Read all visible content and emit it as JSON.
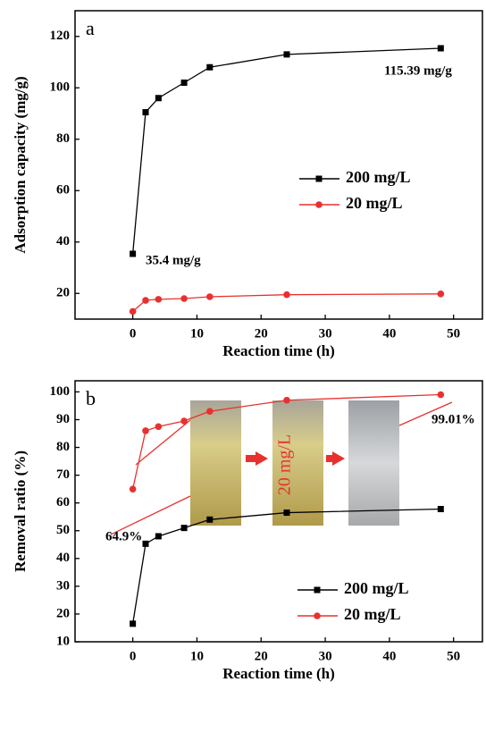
{
  "chart_data": [
    {
      "type": "line",
      "panel_label": "a",
      "xlabel": "Reaction time (h)",
      "ylabel": "Adsorption capacity (mg/g)",
      "x": [
        0,
        2,
        4,
        8,
        12,
        24,
        48
      ],
      "series": [
        {
          "name": "200 mg/L",
          "color": "#000000",
          "marker": "square",
          "values": [
            35.4,
            90.5,
            96,
            102,
            108,
            113,
            115.39
          ]
        },
        {
          "name": "20 mg/L",
          "color": "#e8312f",
          "marker": "circle",
          "values": [
            13,
            17.3,
            17.7,
            18,
            18.7,
            19.5,
            19.8
          ]
        }
      ],
      "xlim": [
        -9,
        54.5
      ],
      "ylim": [
        10,
        130
      ],
      "xticks": [
        0,
        10,
        20,
        30,
        40,
        50
      ],
      "yticks": [
        20,
        40,
        60,
        80,
        100,
        120
      ],
      "legend": "center right",
      "annotations": [
        "35.4 mg/g",
        "115.39 mg/g"
      ]
    },
    {
      "type": "line",
      "panel_label": "b",
      "xlabel": "Reaction time (h)",
      "ylabel": "Removal ratio (%)",
      "x": [
        0,
        2,
        4,
        8,
        12,
        24,
        48
      ],
      "series": [
        {
          "name": "200 mg/L",
          "color": "#000000",
          "marker": "square",
          "values": [
            16.5,
            45.3,
            48,
            51,
            54,
            56.5,
            57.8
          ]
        },
        {
          "name": "20 mg/L",
          "color": "#e8312f",
          "marker": "circle",
          "values": [
            65,
            86,
            87.5,
            89.5,
            93,
            97,
            99
          ]
        }
      ],
      "xlim": [
        -9,
        54.5
      ],
      "ylim": [
        10,
        104
      ],
      "xticks": [
        0,
        10,
        20,
        30,
        40,
        50
      ],
      "yticks": [
        10,
        20,
        30,
        40,
        50,
        60,
        70,
        80,
        90,
        100
      ],
      "legend": "lower right",
      "annotations": [
        "64.9%",
        "99.01%",
        "20 mg/L"
      ]
    }
  ]
}
